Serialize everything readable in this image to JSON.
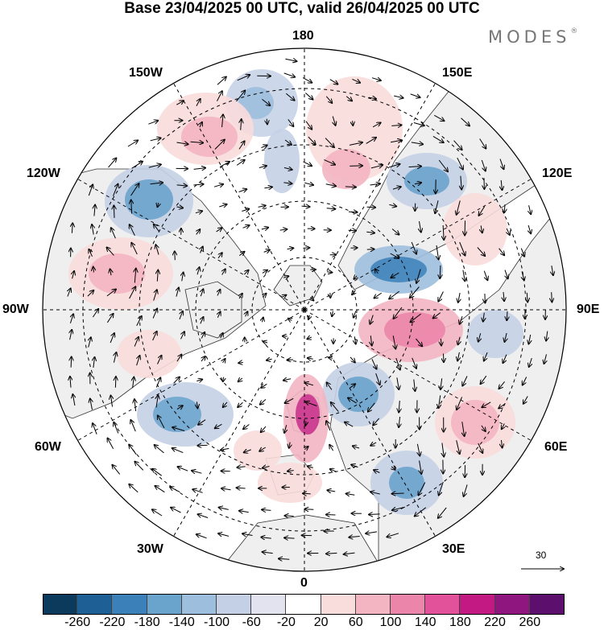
{
  "title": "Base 23/04/2025 00 UTC, valid 26/04/2025 00 UTC",
  "brand": {
    "name": "MODES",
    "mark": "®"
  },
  "longitude_labels": {
    "lon_180": "180",
    "lon_150w": "150W",
    "lon_150e": "150E",
    "lon_120w": "120W",
    "lon_120e": "120E",
    "lon_90w": "90W",
    "lon_90e": "90E",
    "lon_60w": "60W",
    "lon_60e": "60E",
    "lon_30w": "30W",
    "lon_30e": "30E",
    "lon_0": "0"
  },
  "vector_reference": {
    "value": "30"
  },
  "colorbar": {
    "ticks": [
      "-260",
      "-220",
      "-180",
      "-140",
      "-100",
      "-60",
      "-20",
      "20",
      "60",
      "100",
      "140",
      "180",
      "220",
      "260"
    ],
    "colors": [
      "#0b3a5c",
      "#1e5f95",
      "#3b80b8",
      "#6aa3cc",
      "#9dbfdd",
      "#c4d0e6",
      "#e3e3ef",
      "#ffffff",
      "#f9dcdc",
      "#f3b5c2",
      "#ec85aa",
      "#e1529a",
      "#c21a82",
      "#90167f",
      "#5c0f6c"
    ]
  }
}
